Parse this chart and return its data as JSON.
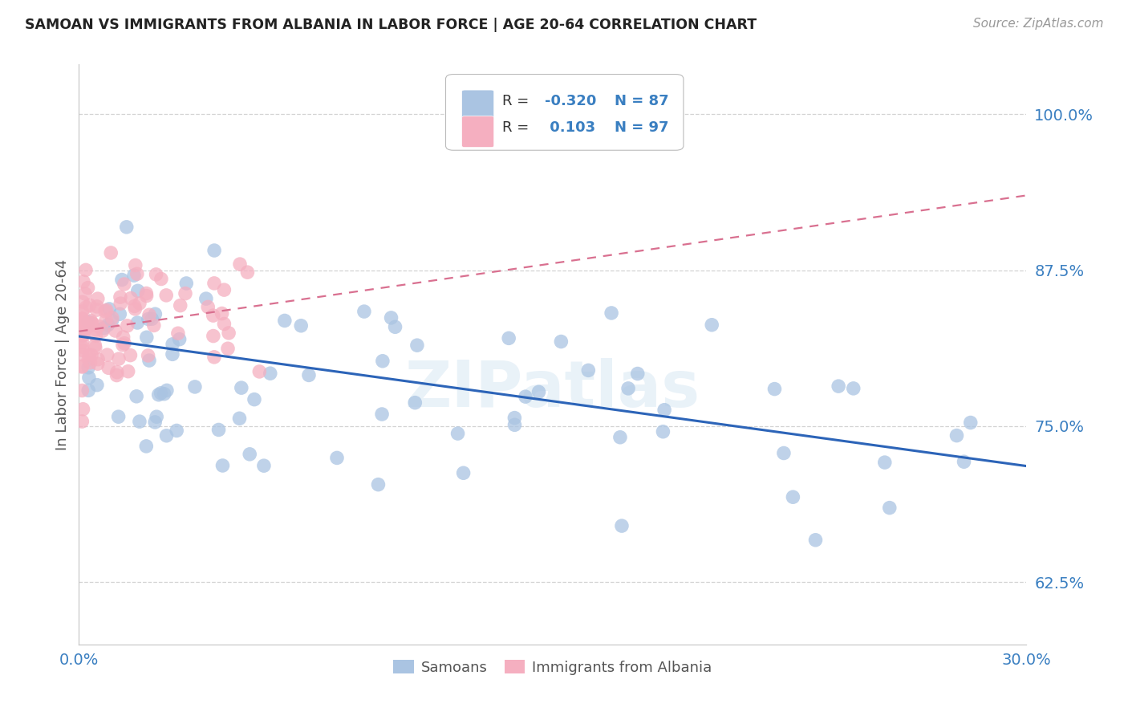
{
  "title": "SAMOAN VS IMMIGRANTS FROM ALBANIA IN LABOR FORCE | AGE 20-64 CORRELATION CHART",
  "source": "Source: ZipAtlas.com",
  "ylabel": "In Labor Force | Age 20-64",
  "xlim": [
    0.0,
    0.3
  ],
  "ylim": [
    0.575,
    1.04
  ],
  "yticks": [
    0.625,
    0.75,
    0.875,
    1.0
  ],
  "ytick_labels": [
    "62.5%",
    "75.0%",
    "87.5%",
    "100.0%"
  ],
  "xticks": [
    0.0,
    0.05,
    0.1,
    0.15,
    0.2,
    0.25,
    0.3
  ],
  "xtick_labels": [
    "0.0%",
    "",
    "",
    "",
    "",
    "",
    "30.0%"
  ],
  "legend_labels": [
    "Samoans",
    "Immigrants from Albania"
  ],
  "blue_color": "#aac4e2",
  "pink_color": "#f5afc0",
  "blue_line_color": "#2c64b8",
  "pink_line_color": "#d97090",
  "r_blue": -0.32,
  "n_blue": 87,
  "r_pink": 0.103,
  "n_pink": 97,
  "watermark": "ZIPatlas",
  "blue_line_x": [
    0.0,
    0.3
  ],
  "blue_line_y": [
    0.822,
    0.718
  ],
  "pink_line_x": [
    0.0,
    0.3
  ],
  "pink_line_y": [
    0.826,
    0.935
  ]
}
